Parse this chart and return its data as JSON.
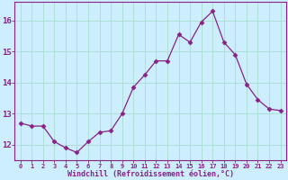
{
  "x": [
    0,
    1,
    2,
    3,
    4,
    5,
    6,
    7,
    8,
    9,
    10,
    11,
    12,
    13,
    14,
    15,
    16,
    17,
    18,
    19,
    20,
    21,
    22,
    23
  ],
  "y": [
    12.7,
    12.6,
    12.6,
    12.1,
    11.9,
    11.75,
    12.1,
    12.4,
    12.45,
    13.0,
    13.85,
    14.25,
    14.7,
    14.7,
    15.55,
    15.3,
    15.95,
    16.3,
    15.3,
    14.9,
    13.95,
    13.45,
    13.15,
    13.1
  ],
  "line_color": "#882288",
  "marker": "D",
  "marker_size": 2.5,
  "bg_color": "#cceeff",
  "grid_color": "#aaddcc",
  "xlabel": "Windchill (Refroidissement éolien,°C)",
  "xlabel_color": "#882288",
  "tick_color": "#882288",
  "spine_color": "#882288",
  "ylim": [
    11.5,
    16.6
  ],
  "xlim": [
    -0.5,
    23.5
  ],
  "yticks": [
    12,
    13,
    14,
    15,
    16
  ],
  "xticks": [
    0,
    1,
    2,
    3,
    4,
    5,
    6,
    7,
    8,
    9,
    10,
    11,
    12,
    13,
    14,
    15,
    16,
    17,
    18,
    19,
    20,
    21,
    22,
    23
  ],
  "xlabel_fontsize": 6.0,
  "xtick_fontsize": 5.0,
  "ytick_fontsize": 6.5
}
